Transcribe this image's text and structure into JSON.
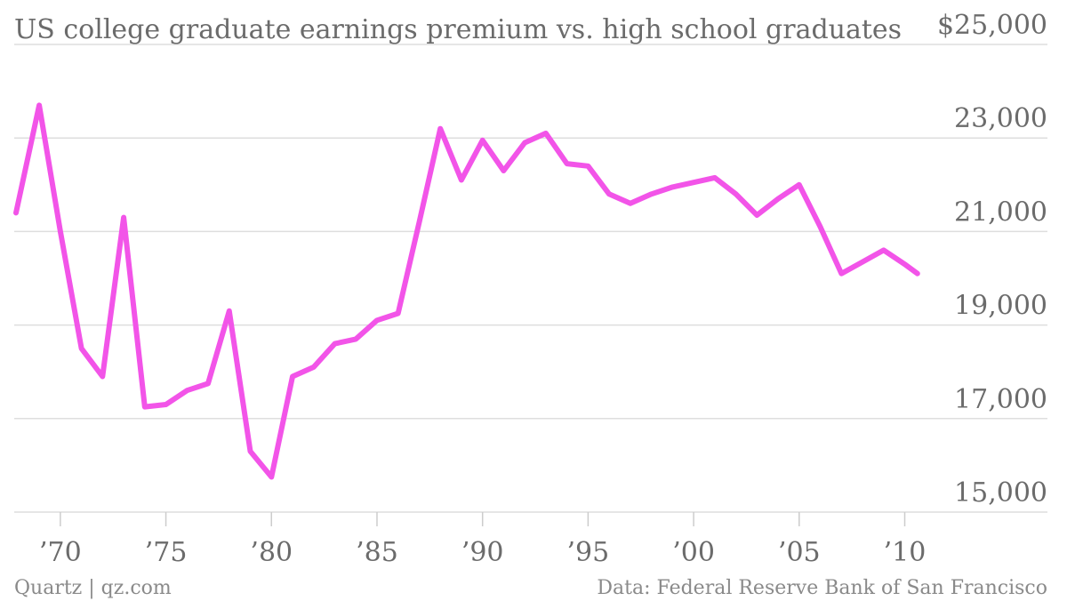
{
  "chart_data": {
    "type": "line",
    "title": "US college graduate earnings premium vs. high school graduates",
    "xlabel": "",
    "ylabel": "",
    "x_tick_labels": [
      "’70",
      "’75",
      "’80",
      "’85",
      "’90",
      "’95",
      "’00",
      "’05",
      "’10"
    ],
    "x_tick_values": [
      1970,
      1975,
      1980,
      1985,
      1990,
      1995,
      2000,
      2005,
      2010
    ],
    "y_tick_labels": [
      "15,000",
      "17,000",
      "19,000",
      "21,000",
      "23,000",
      "$25,000"
    ],
    "y_tick_values": [
      15000,
      17000,
      19000,
      21000,
      23000,
      25000
    ],
    "xlim": [
      1967.9,
      2011.2
    ],
    "ylim": [
      15000,
      25000
    ],
    "grid": true,
    "series_color": "#f254e8",
    "series": [
      {
        "x": [
          1967.9,
          1969,
          1970,
          1971,
          1972,
          1973,
          1974,
          1975,
          1976,
          1977,
          1978,
          1979,
          1980,
          1981,
          1982,
          1983,
          1984,
          1985,
          1986,
          1987,
          1988,
          1989,
          1990,
          1991,
          1992,
          1993,
          1994,
          1995,
          1996,
          1997,
          1998,
          1999,
          2000,
          2001,
          2002,
          2003,
          2004,
          2005,
          2006,
          2007,
          2008,
          2009,
          2010,
          2010.6
        ],
        "values": [
          21400,
          23700,
          21000,
          18500,
          17900,
          21300,
          17250,
          17300,
          17600,
          17750,
          19300,
          16300,
          15750,
          17900,
          18100,
          18600,
          18700,
          19100,
          19250,
          21200,
          23200,
          22100,
          22950,
          22300,
          22900,
          23100,
          22450,
          22400,
          21800,
          21600,
          21800,
          21950,
          22050,
          22150,
          21800,
          21350,
          21700,
          22000,
          21100,
          20100,
          20350,
          20600,
          20300,
          20100
        ]
      }
    ]
  },
  "footer": {
    "source_left": "Quartz | qz.com",
    "source_right": "Data: Federal Reserve Bank of San Francisco"
  }
}
